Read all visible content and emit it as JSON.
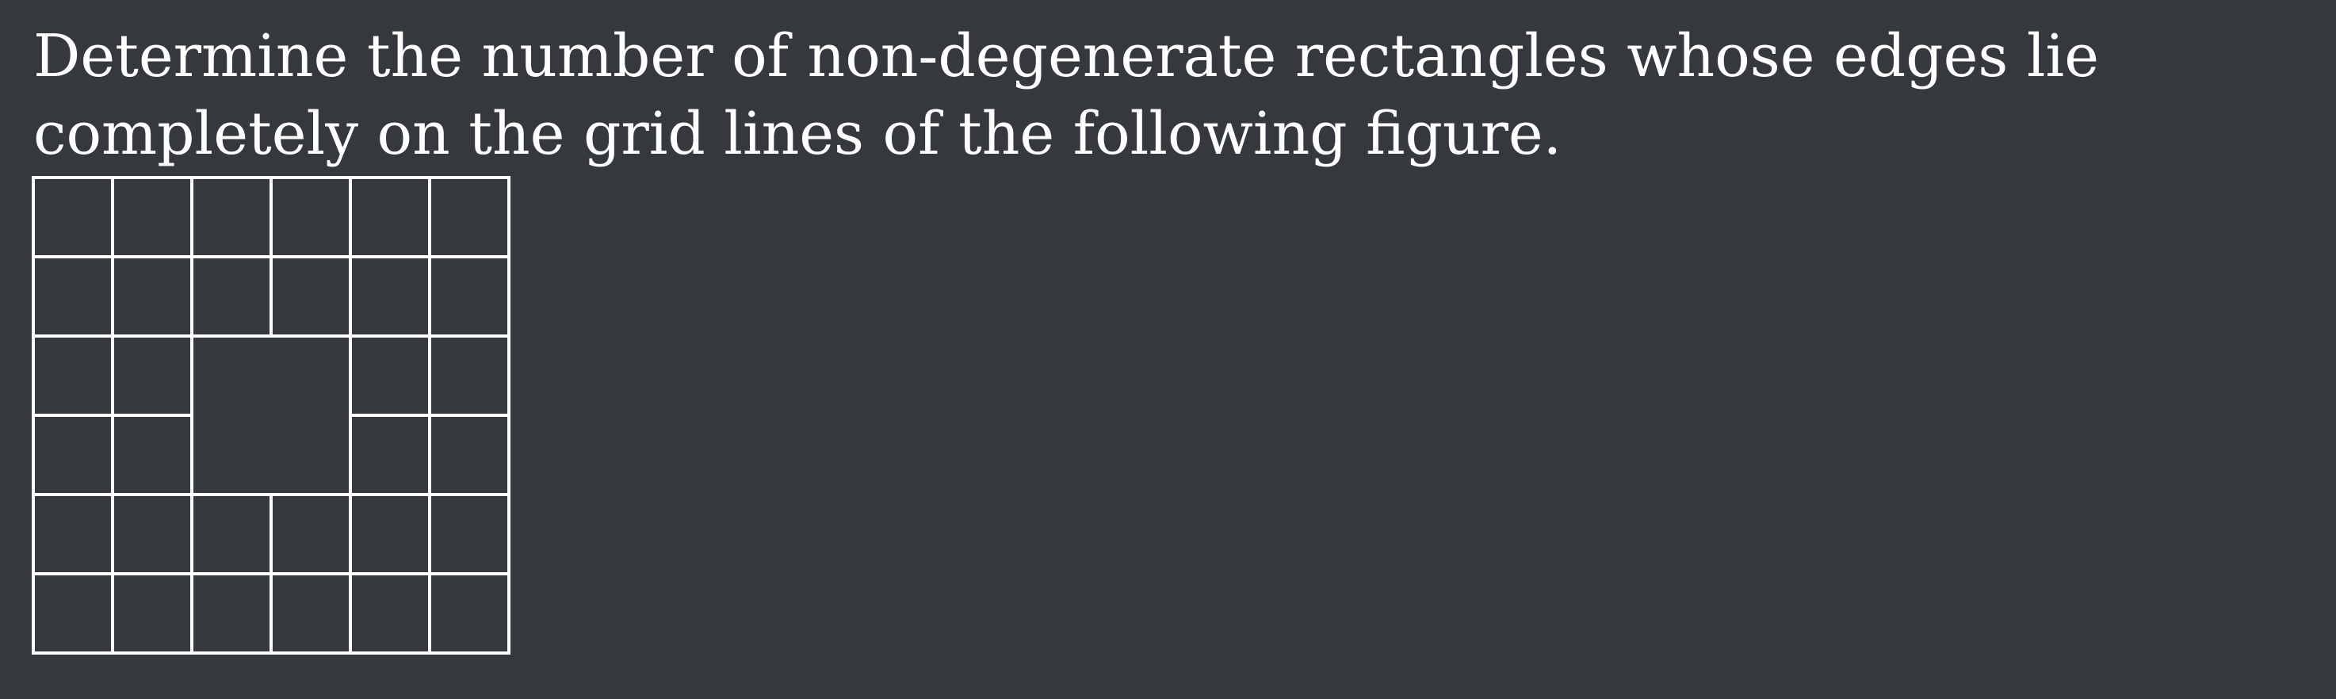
{
  "problem": {
    "text": "Determine the number of non-degenerate rectangles whose edges lie completely on the grid lines of the following figure."
  },
  "figure": {
    "rows": 6,
    "cols": 6,
    "missing_segments": {
      "horizontal": [
        {
          "line": 3,
          "from_col": 2,
          "to_col": 4
        }
      ],
      "vertical": [
        {
          "line": 3,
          "from_row": 2,
          "to_row": 4
        }
      ]
    },
    "colors": {
      "background": "#35383d",
      "lines": "#ffffff"
    }
  }
}
